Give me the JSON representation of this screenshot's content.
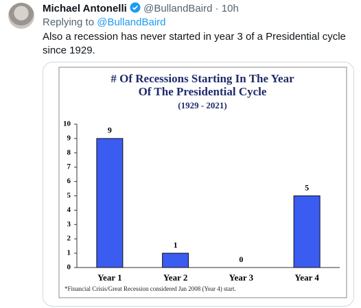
{
  "tweet": {
    "author": "Michael Antonelli",
    "handle": "@BullandBaird",
    "separator": "·",
    "time": "10h",
    "replying_label": "Replying to",
    "replying_to": "@BullandBaird",
    "text": "Also a recession has never started in year 3 of a Presidential cycle since 1929."
  },
  "chart_data": {
    "type": "bar",
    "title": [
      "# Of Recessions Starting In The Year",
      "Of The Presidential Cycle"
    ],
    "subtitle": "(1929 - 2021)",
    "categories": [
      "Year 1",
      "Year 2",
      "Year 3",
      "Year 4"
    ],
    "values": [
      9,
      1,
      0,
      5
    ],
    "color": "#3a5cf0",
    "ylim": [
      0,
      10
    ],
    "yticks": [
      0,
      1,
      2,
      3,
      4,
      5,
      6,
      7,
      8,
      9,
      10
    ],
    "grid": false,
    "footnote": "*Financial Crisis/Great Recession considered Jan 2008 (Year 4) start."
  }
}
